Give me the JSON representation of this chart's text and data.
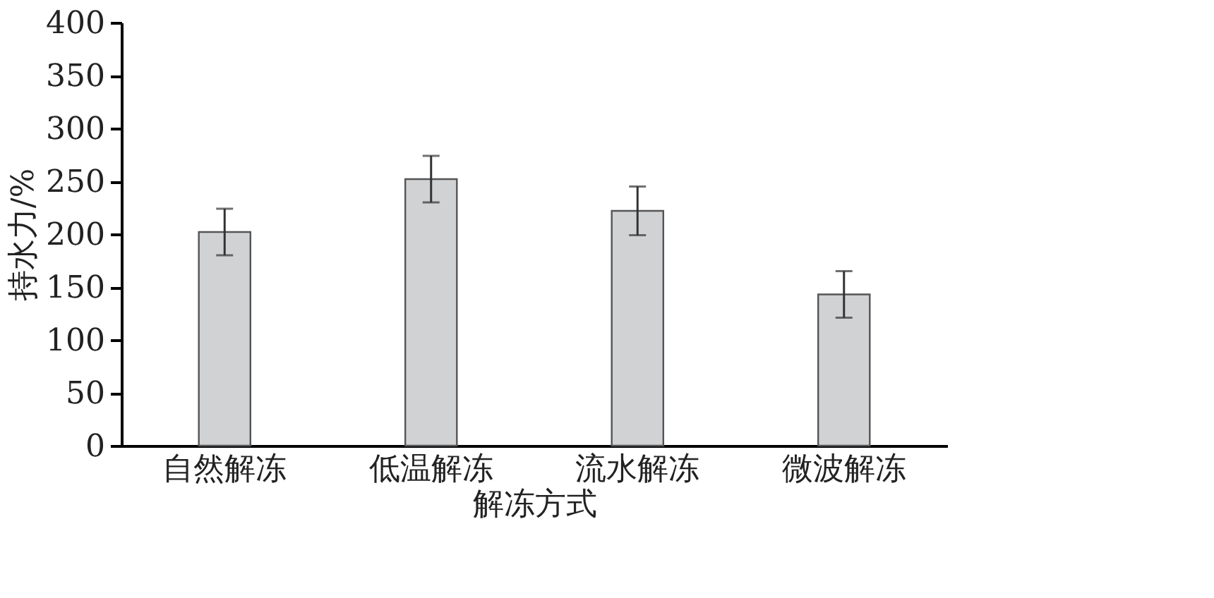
{
  "chart_data": {
    "type": "bar",
    "xlabel": "解冻方式",
    "ylabel": "持水力/%",
    "categories": [
      "自然解冻",
      "低温解冻",
      "流水解冻",
      "微波解冻"
    ],
    "values": [
      202,
      252,
      222,
      143
    ],
    "errors": [
      22,
      22,
      23,
      22
    ],
    "color": "#d1d2d4",
    "ylim": [
      0,
      400
    ],
    "yticks": [
      0,
      50,
      100,
      150,
      200,
      250,
      300,
      350,
      400
    ],
    "grid": false
  }
}
